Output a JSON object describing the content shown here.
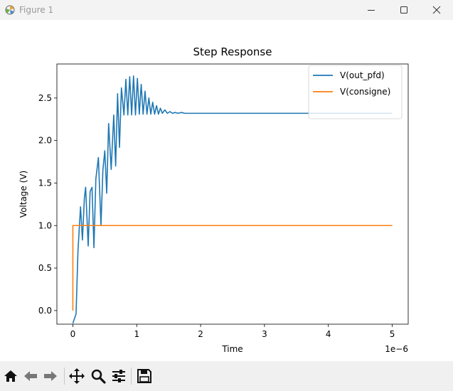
{
  "window": {
    "title": "Figure 1",
    "app_icon": "matplotlib-logo-icon",
    "controls": [
      "minimize-icon",
      "maximize-icon",
      "close-icon"
    ]
  },
  "toolbar": {
    "buttons": [
      "home-icon",
      "back-arrow-icon",
      "forward-arrow-icon",
      "pan-move-icon",
      "zoom-magnifier-icon",
      "configure-subplots-icon",
      "save-floppy-icon"
    ]
  },
  "chart_data": {
    "type": "line",
    "title": "Step Response",
    "xlabel": "Time",
    "ylabel": "Voltage (V)",
    "x_offset_label": "1e−6",
    "xlim": [
      -0.25,
      5.25
    ],
    "ylim": [
      -0.16,
      2.9
    ],
    "xticks": [
      0,
      1,
      2,
      3,
      4,
      5
    ],
    "xtick_labels": [
      "0",
      "1",
      "2",
      "3",
      "4",
      "5"
    ],
    "yticks": [
      0.0,
      0.5,
      1.0,
      1.5,
      2.0,
      2.5
    ],
    "ytick_labels": [
      "0.0",
      "0.5",
      "1.0",
      "1.5",
      "2.0",
      "2.5"
    ],
    "grid": false,
    "legend_position": "top-right",
    "series": [
      {
        "name": "V(out_pfd)",
        "color": "#1f77b4",
        "x": [
          0.0,
          0.05,
          0.08,
          0.12,
          0.15,
          0.18,
          0.2,
          0.24,
          0.27,
          0.3,
          0.33,
          0.36,
          0.4,
          0.44,
          0.47,
          0.5,
          0.53,
          0.56,
          0.6,
          0.64,
          0.67,
          0.7,
          0.73,
          0.76,
          0.8,
          0.83,
          0.86,
          0.89,
          0.92,
          0.95,
          0.98,
          1.01,
          1.04,
          1.07,
          1.1,
          1.13,
          1.16,
          1.19,
          1.22,
          1.25,
          1.28,
          1.31,
          1.34,
          1.37,
          1.4,
          1.44,
          1.48,
          1.52,
          1.56,
          1.6,
          1.65,
          1.7,
          1.75,
          1.8,
          1.85,
          1.9,
          1.95,
          2.0,
          2.1,
          2.2,
          2.3,
          2.5,
          3.0,
          4.0,
          5.0
        ],
        "y": [
          -0.15,
          -0.04,
          0.7,
          1.22,
          0.83,
          1.32,
          1.45,
          0.76,
          1.4,
          1.45,
          0.74,
          1.55,
          1.8,
          1.0,
          1.65,
          1.88,
          1.38,
          2.2,
          1.66,
          2.3,
          1.7,
          2.55,
          1.92,
          2.62,
          2.3,
          2.72,
          2.3,
          2.75,
          2.3,
          2.76,
          2.3,
          2.73,
          2.31,
          2.66,
          2.31,
          2.58,
          2.31,
          2.5,
          2.31,
          2.45,
          2.31,
          2.41,
          2.31,
          2.38,
          2.32,
          2.36,
          2.32,
          2.34,
          2.32,
          2.33,
          2.32,
          2.33,
          2.32,
          2.32,
          2.32,
          2.32,
          2.32,
          2.32,
          2.32,
          2.32,
          2.32,
          2.32,
          2.32,
          2.32,
          2.32
        ]
      },
      {
        "name": "V(consigne)",
        "color": "#ff7f0e",
        "x": [
          0.0,
          0.0,
          5.0
        ],
        "y": [
          0.0,
          1.0,
          1.0
        ]
      }
    ]
  }
}
